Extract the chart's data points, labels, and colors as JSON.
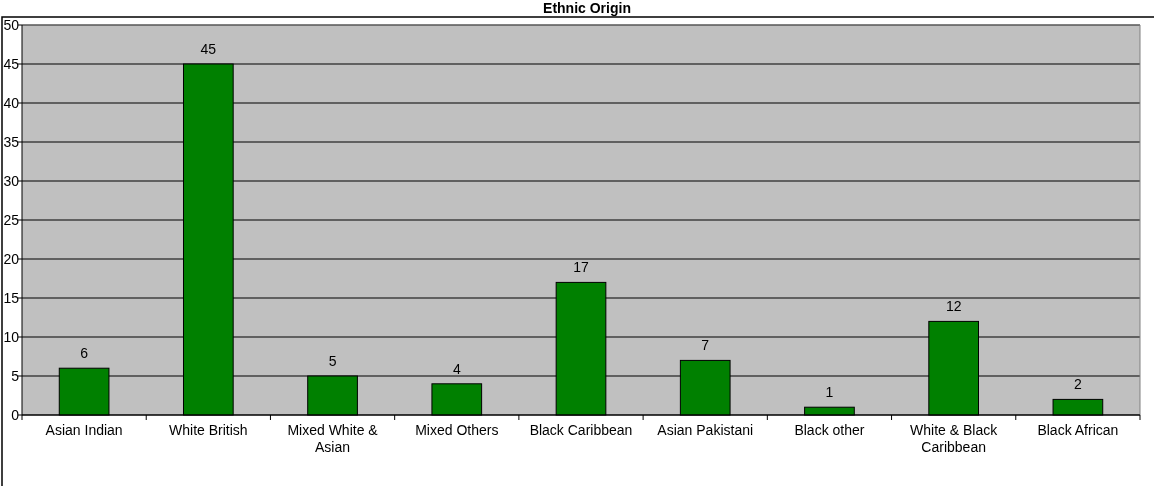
{
  "chart_data": {
    "type": "bar",
    "title": "Ethnic Origin",
    "categories": [
      "Asian Indian",
      "White British",
      "Mixed White & Asian",
      "Mixed Others",
      "Black Caribbean",
      "Asian Pakistani",
      "Black other",
      "White & Black Caribbean",
      "Black African"
    ],
    "values": [
      6,
      45,
      5,
      4,
      17,
      7,
      1,
      12,
      2
    ],
    "color": "#008000",
    "ylim": [
      0,
      50
    ],
    "yticks": [
      0,
      5,
      10,
      15,
      20,
      25,
      30,
      35,
      40,
      45,
      50
    ],
    "grid": "y",
    "data_labels": true
  }
}
